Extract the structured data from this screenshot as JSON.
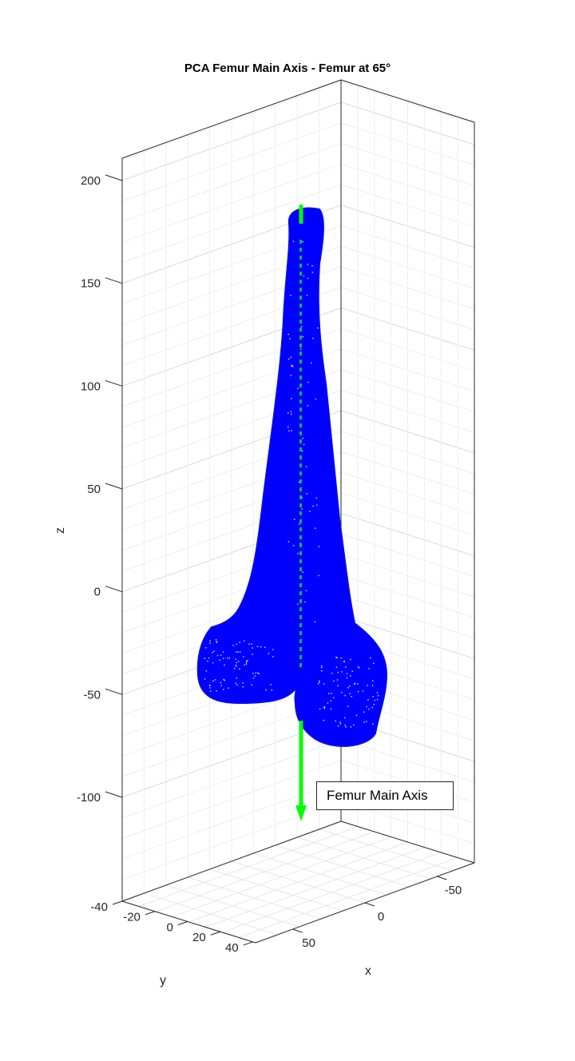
{
  "chart_data": {
    "type": "scatter",
    "title": "PCA Femur Main Axis - Femur at 65°",
    "xlabel": "x",
    "ylabel": "y",
    "zlabel": "z",
    "x_ticks": [
      "50",
      "0",
      "-50"
    ],
    "y_ticks": [
      "-40",
      "-20",
      "0",
      "20",
      "40"
    ],
    "z_ticks": [
      "200",
      "150",
      "100",
      "50",
      "0",
      "-50",
      "-100"
    ],
    "zlim": [
      -150,
      210
    ],
    "grid": true,
    "series": [
      {
        "name": "",
        "kind": "point-cloud",
        "color": "#0000ff",
        "description_z_range": [
          -75,
          185
        ]
      },
      {
        "name": "Femur Main Axis",
        "kind": "arrow",
        "color": "#00ff00",
        "z_from": 187,
        "z_to": -115
      }
    ],
    "legend": {
      "entries": [
        "Femur Main Axis"
      ],
      "placement": "bottom-right"
    }
  }
}
